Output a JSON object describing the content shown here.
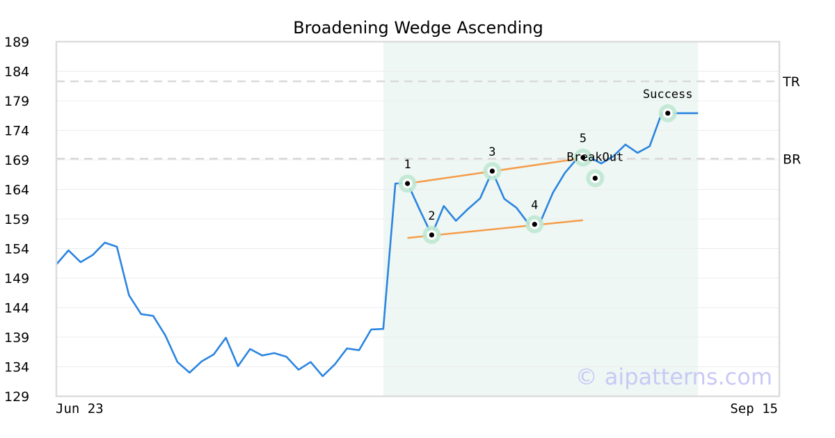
{
  "chart_data": {
    "type": "line",
    "title": "Broadening Wedge Ascending",
    "x_labels": {
      "start": "Jun 23",
      "end": "Sep 15"
    },
    "yticks": [
      189,
      184,
      179,
      174,
      169,
      164,
      159,
      154,
      149,
      144,
      139,
      134,
      129
    ],
    "ylim": [
      129,
      189
    ],
    "grid": true,
    "n_points": 54,
    "series": [
      {
        "color": "#2a84e0",
        "values": [
          151.3,
          153.7,
          151.7,
          152.9,
          155.0,
          154.3,
          146.1,
          142.9,
          142.6,
          139.3,
          134.8,
          133.0,
          134.9,
          136.1,
          138.9,
          134.1,
          137.0,
          135.9,
          136.3,
          135.7,
          133.5,
          134.8,
          132.4,
          134.4,
          137.1,
          136.8,
          140.3,
          140.4,
          165.0,
          165.1,
          160.6,
          156.3,
          161.2,
          158.7,
          160.7,
          162.5,
          167.1,
          162.4,
          160.9,
          158.2,
          158.6,
          163.4,
          166.8,
          169.2,
          169.5,
          168.4,
          169.6,
          171.6,
          170.2,
          171.3,
          176.9,
          176.9,
          176.9,
          176.9
        ]
      }
    ],
    "shaded_region": {
      "from_index": 27,
      "to_index": 53,
      "color": "#eef7f3"
    },
    "levels": [
      {
        "label": "TR",
        "value": 182.3
      },
      {
        "label": "BR",
        "value": 169.2
      }
    ],
    "trendlines": [
      {
        "from": [
          29,
          165.0
        ],
        "to": [
          43.5,
          169.3
        ],
        "color": "#f59c4a"
      },
      {
        "from": [
          29,
          155.8
        ],
        "to": [
          43.5,
          158.8
        ],
        "color": "#f59c4a"
      }
    ],
    "points": [
      {
        "label": "1",
        "index": 29,
        "value": 165.0,
        "label_pos": "above"
      },
      {
        "label": "2",
        "index": 31,
        "value": 156.3,
        "label_pos": "above"
      },
      {
        "label": "3",
        "index": 36,
        "value": 167.1,
        "label_pos": "above"
      },
      {
        "label": "4",
        "index": 39.5,
        "value": 158.1,
        "label_pos": "above"
      },
      {
        "label": "5",
        "index": 43.5,
        "value": 169.4,
        "label_pos": "above"
      },
      {
        "label": "BreakOut",
        "index": 44.5,
        "value": 165.9,
        "label_pos": "above-far"
      },
      {
        "label": "Success",
        "index": 50.5,
        "value": 176.9,
        "label_pos": "above"
      }
    ],
    "watermark": "© aipatterns.com"
  }
}
